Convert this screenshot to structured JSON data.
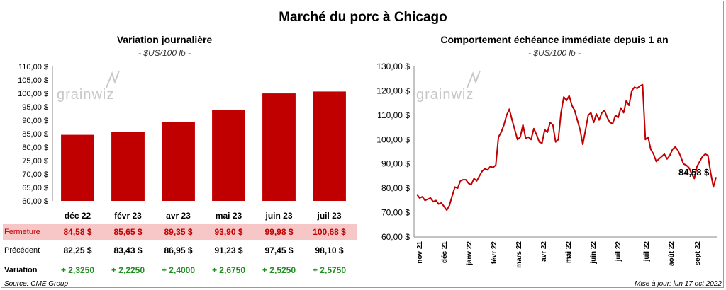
{
  "title": "Marché du porc à Chicago",
  "left": {
    "title": "Variation journalière",
    "unit": "- $US/100 lb -"
  },
  "right": {
    "title": "Comportement échéance immédiate depuis 1 an",
    "unit": "- $US/100 lb -",
    "last_value_label": "84,58 $"
  },
  "watermark": "grainwiz",
  "table": {
    "rows": [
      {
        "label": "Fermeture",
        "cells": [
          "84,58 $",
          "85,65 $",
          "89,35 $",
          "93,90 $",
          "99,98 $",
          "100,68 $"
        ]
      },
      {
        "label": "Précédent",
        "cells": [
          "82,25 $",
          "83,43 $",
          "86,95 $",
          "91,23 $",
          "97,45 $",
          "98,10 $"
        ]
      },
      {
        "label": "Variation",
        "cells": [
          "+ 2,3250",
          "+ 2,2250",
          "+ 2,4000",
          "+ 2,6750",
          "+ 2,5250",
          "+ 2,5750"
        ]
      }
    ]
  },
  "footer": {
    "source": "Source: CME Group",
    "updated": "Mise à jour: lun 17 oct 2022"
  },
  "colors": {
    "bar": "#c00000",
    "line": "#c00000",
    "positive": "#1e8e1e",
    "close_row_bg": "#f7c7c7"
  },
  "chart_data": [
    {
      "type": "bar",
      "categories": [
        "déc 22",
        "févr 23",
        "avr 23",
        "mai 23",
        "juin 23",
        "juil 23"
      ],
      "values": [
        84.58,
        85.65,
        89.35,
        93.9,
        99.98,
        100.68
      ],
      "ylim": [
        60,
        110
      ],
      "yticks": [
        "60,00 $",
        "65,00 $",
        "70,00 $",
        "75,00 $",
        "80,00 $",
        "85,00 $",
        "90,00 $",
        "95,00 $",
        "100,00 $",
        "105,00 $",
        "110,00 $"
      ],
      "grid": false
    },
    {
      "type": "line",
      "ylim": [
        60,
        130
      ],
      "yticks": [
        "60,00 $",
        "70,00 $",
        "80,00 $",
        "90,00 $",
        "100,00 $",
        "110,00 $",
        "120,00 $",
        "130,00 $"
      ],
      "x_labels": [
        "nov 21",
        "déc 21",
        "janv 22",
        "févr 22",
        "mars 22",
        "avr 22",
        "mai 22",
        "juin 22",
        "juil 22",
        "juil 22",
        "août 22",
        "sept 22"
      ],
      "series": [
        {
          "values": [
            77.5,
            76.0,
            76.5,
            75.0,
            75.5,
            76.0,
            74.5,
            75.0,
            73.5,
            74.0,
            72.5,
            71.0,
            73.0,
            77.0,
            80.5,
            80.0,
            83.0,
            83.5,
            83.5,
            82.0,
            81.5,
            84.0,
            83.0,
            85.0,
            87.0,
            88.0,
            87.5,
            89.0,
            88.5,
            89.5,
            101.0,
            103.0,
            106.0,
            110.0,
            112.5,
            108.0,
            104.0,
            100.0,
            101.0,
            106.0,
            100.5,
            101.0,
            100.0,
            104.5,
            102.0,
            99.0,
            98.5,
            104.0,
            103.0,
            107.0,
            106.0,
            99.0,
            100.0,
            111.0,
            117.5,
            116.0,
            118.0,
            114.0,
            112.0,
            108.0,
            104.0,
            98.0,
            104.0,
            110.0,
            111.0,
            107.0,
            110.5,
            108.0,
            111.0,
            112.0,
            109.0,
            107.0,
            106.5,
            110.0,
            109.0,
            113.0,
            111.0,
            116.0,
            114.0,
            120.0,
            121.5,
            121.0,
            122.0,
            122.5,
            100.0,
            101.0,
            96.0,
            94.0,
            91.0,
            92.0,
            93.0,
            94.0,
            92.0,
            93.5,
            96.0,
            97.0,
            95.5,
            93.0,
            90.0,
            89.5,
            88.5,
            86.0,
            84.0,
            89.0,
            91.0,
            93.0,
            94.0,
            93.5,
            86.5,
            80.5,
            84.58
          ],
          "last_value": 84.58
        }
      ],
      "grid": false
    }
  ]
}
